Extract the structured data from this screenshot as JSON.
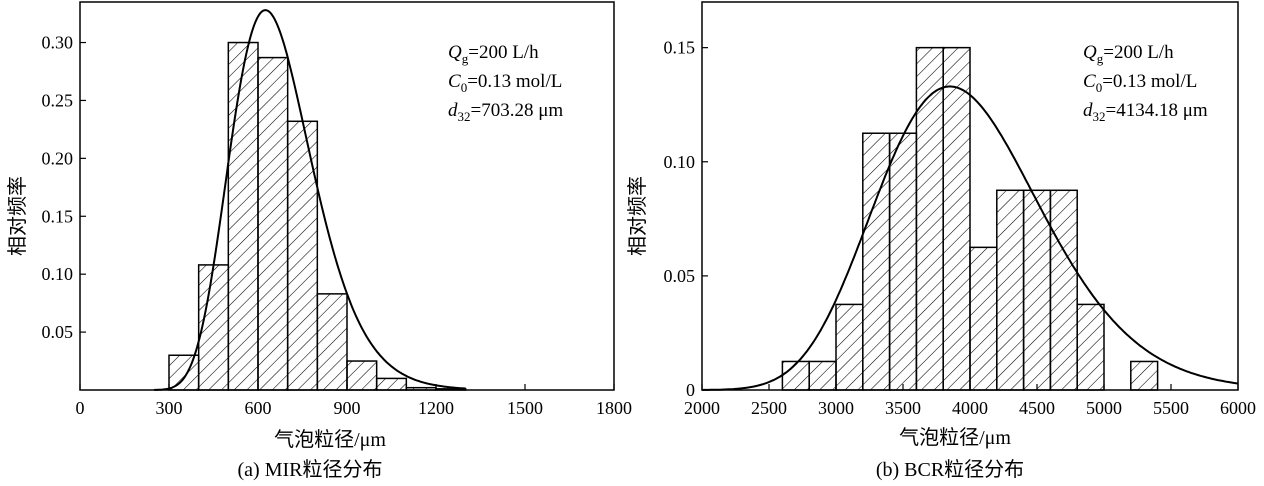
{
  "chart_data": [
    {
      "type": "bar",
      "title": "",
      "caption": "(a) MIR粒径分布",
      "xlabel": "气泡粒径/μm",
      "ylabel": "相对频率",
      "xlim": [
        0,
        1800
      ],
      "ylim": [
        0,
        0.335
      ],
      "xticks": [
        0,
        300,
        600,
        900,
        1200,
        1500,
        1800
      ],
      "yticks": [
        0.05,
        0.1,
        0.15,
        0.2,
        0.25,
        0.3
      ],
      "xtick_labels": [
        "0",
        "300",
        "600",
        "900",
        "1200",
        "1500",
        "1800"
      ],
      "ytick_labels": [
        "0.05",
        "0.10",
        "0.15",
        "0.20",
        "0.25",
        "0.30"
      ],
      "bin_width": 100,
      "bins": [
        {
          "x": 300,
          "value": 0.03
        },
        {
          "x": 400,
          "value": 0.108
        },
        {
          "x": 500,
          "value": 0.3
        },
        {
          "x": 600,
          "value": 0.287
        },
        {
          "x": 700,
          "value": 0.232
        },
        {
          "x": 800,
          "value": 0.083
        },
        {
          "x": 900,
          "value": 0.025
        },
        {
          "x": 1000,
          "value": 0.01
        },
        {
          "x": 1100,
          "value": 0.002
        },
        {
          "x": 1200,
          "value": 0.001
        }
      ],
      "fit_curve": {
        "type": "lognormal",
        "median": 625,
        "sigma": 0.22,
        "peak": 0.328,
        "x_range": [
          250,
          1300
        ]
      },
      "annotation": {
        "q_label": "Q",
        "q_sub": "g",
        "q_value": "=200 L/h",
        "c_label": "C",
        "c_sub": "0",
        "c_value": "=0.13 mol/L",
        "d_label": "d",
        "d_sub": "32",
        "d_value": "=703.28 μm"
      },
      "grid": false
    },
    {
      "type": "bar",
      "title": "",
      "caption": "(b) BCR粒径分布",
      "xlabel": "气泡粒径/μm",
      "ylabel": "相对频率",
      "xlim": [
        2000,
        6000
      ],
      "ylim": [
        0,
        0.17
      ],
      "xticks": [
        2000,
        2500,
        3000,
        3500,
        4000,
        4500,
        5000,
        5500,
        6000
      ],
      "yticks": [
        0,
        0.05,
        0.1,
        0.15
      ],
      "xtick_labels": [
        "2000",
        "2500",
        "3000",
        "3500",
        "4000",
        "4500",
        "5000",
        "5500",
        "6000"
      ],
      "ytick_labels": [
        "0",
        "0.05",
        "0.10",
        "0.15"
      ],
      "bin_width": 200,
      "bins": [
        {
          "x": 2600,
          "value": 0.0125
        },
        {
          "x": 2800,
          "value": 0.0125
        },
        {
          "x": 3000,
          "value": 0.0375
        },
        {
          "x": 3200,
          "value": 0.1125
        },
        {
          "x": 3400,
          "value": 0.1125
        },
        {
          "x": 3600,
          "value": 0.15
        },
        {
          "x": 3800,
          "value": 0.15
        },
        {
          "x": 4000,
          "value": 0.0625
        },
        {
          "x": 4200,
          "value": 0.0875
        },
        {
          "x": 4400,
          "value": 0.0875
        },
        {
          "x": 4600,
          "value": 0.0875
        },
        {
          "x": 4800,
          "value": 0.0375
        },
        {
          "x": 5200,
          "value": 0.0125
        }
      ],
      "fit_curve": {
        "type": "lognormal",
        "median": 3850,
        "sigma": 0.16,
        "peak": 0.133,
        "x_range": [
          2000,
          6000
        ]
      },
      "annotation": {
        "q_label": "Q",
        "q_sub": "g",
        "q_value": "=200 L/h",
        "c_label": "C",
        "c_sub": "0",
        "c_value": "=0.13 mol/L",
        "d_label": "d",
        "d_sub": "32",
        "d_value": "=4134.18 μm"
      },
      "grid": false
    }
  ]
}
